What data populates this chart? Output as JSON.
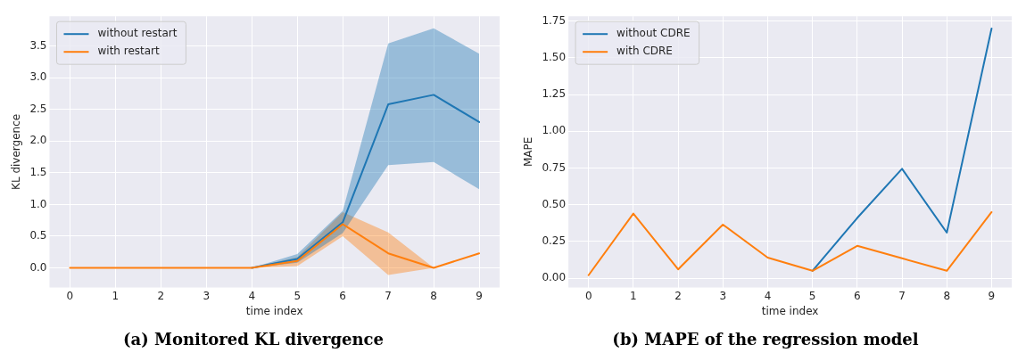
{
  "chart_data": [
    {
      "type": "line",
      "title": "(a) Monitored KL divergence",
      "xlabel": "time index",
      "ylabel": "KL divergence",
      "x": [
        0,
        1,
        2,
        3,
        4,
        5,
        6,
        7,
        8,
        9
      ],
      "xlim": [
        -0.45,
        9.45
      ],
      "xticks": [
        0,
        1,
        2,
        3,
        4,
        5,
        6,
        7,
        8,
        9
      ],
      "ylim": [
        -0.31,
        3.97
      ],
      "yticks": [
        {
          "value": 0,
          "label": "0.0"
        },
        {
          "value": 0.5,
          "label": "0.5"
        },
        {
          "value": 1,
          "label": "1.0"
        },
        {
          "value": 1.5,
          "label": "1.5"
        },
        {
          "value": 2,
          "label": "2.0"
        },
        {
          "value": 2.5,
          "label": "2.5"
        },
        {
          "value": 3,
          "label": "3.0"
        },
        {
          "value": 3.5,
          "label": "3.5"
        }
      ],
      "grid": true,
      "legend": "top left",
      "marker": "none",
      "line_style": "solid",
      "series": [
        {
          "name": "without restart",
          "color": "#1f77b4",
          "values": [
            null,
            null,
            null,
            null,
            0,
            0.14,
            0.72,
            2.58,
            2.73,
            2.3
          ],
          "lower": [
            0,
            0,
            0,
            0,
            0,
            0.08,
            0.55,
            1.62,
            1.67,
            1.24
          ],
          "upper": [
            0,
            0,
            0,
            0,
            0,
            0.22,
            0.9,
            3.54,
            3.78,
            3.38
          ]
        },
        {
          "name": "with restart",
          "color": "#ff7f0e",
          "values": [
            0,
            0,
            0,
            0,
            0,
            0.11,
            0.69,
            0.23,
            0,
            0.23
          ],
          "lower": [
            0,
            0,
            0,
            0,
            0,
            0.03,
            0.5,
            -0.11,
            0,
            0.23
          ],
          "upper": [
            0,
            0,
            0,
            0,
            0,
            0.17,
            0.88,
            0.56,
            0,
            0.23
          ]
        }
      ]
    },
    {
      "type": "line",
      "title": "(b) MAPE of the regression model",
      "xlabel": "time index",
      "ylabel": "MAPE",
      "x": [
        0,
        1,
        2,
        3,
        4,
        5,
        6,
        7,
        8,
        9
      ],
      "xlim": [
        -0.45,
        9.45
      ],
      "xticks": [
        0,
        1,
        2,
        3,
        4,
        5,
        6,
        7,
        8,
        9
      ],
      "ylim": [
        -0.064,
        1.784
      ],
      "yticks": [
        {
          "value": 0,
          "label": "0.00"
        },
        {
          "value": 0.25,
          "label": "0.25"
        },
        {
          "value": 0.5,
          "label": "0.50"
        },
        {
          "value": 0.75,
          "label": "0.75"
        },
        {
          "value": 1,
          "label": "1.00"
        },
        {
          "value": 1.25,
          "label": "1.25"
        },
        {
          "value": 1.5,
          "label": "1.50"
        },
        {
          "value": 1.75,
          "label": "1.75"
        }
      ],
      "grid": true,
      "legend": "top left",
      "marker": "none",
      "line_style": "solid",
      "series": [
        {
          "name": "without CDRE",
          "color": "#1f77b4",
          "values": [
            null,
            null,
            null,
            null,
            null,
            0.05,
            0.41,
            0.745,
            0.31,
            1.7
          ]
        },
        {
          "name": "with CDRE",
          "color": "#ff7f0e",
          "values": [
            0.02,
            0.44,
            0.06,
            0.365,
            0.14,
            0.05,
            0.22,
            0.135,
            0.05,
            0.45
          ]
        }
      ]
    }
  ]
}
